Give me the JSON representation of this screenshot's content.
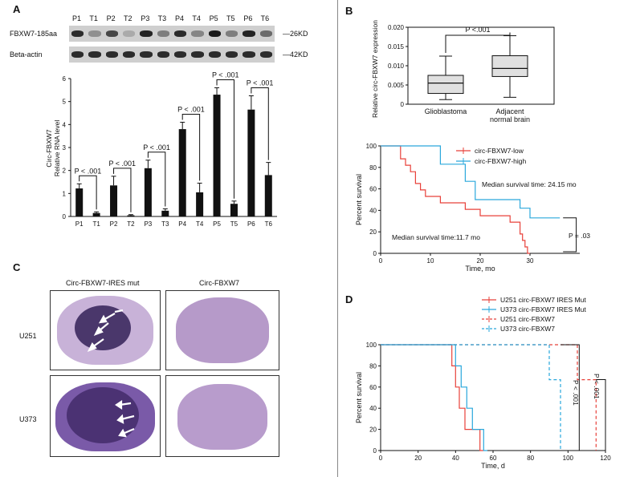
{
  "panels": {
    "a": "A",
    "b": "B",
    "c": "C",
    "d": "D"
  },
  "panel_a": {
    "lanes": [
      "P1",
      "T1",
      "P2",
      "T2",
      "P3",
      "T3",
      "P4",
      "T4",
      "P5",
      "T5",
      "P6",
      "T6"
    ],
    "blots": [
      {
        "name": "FBXW7-185aa",
        "size": "26KD",
        "intensity": [
          0.9,
          0.35,
          0.75,
          0.2,
          0.95,
          0.45,
          0.9,
          0.4,
          1.0,
          0.45,
          0.95,
          0.55
        ]
      },
      {
        "name": "Beta-actin",
        "size": "42KD",
        "intensity": [
          0.9,
          0.9,
          0.9,
          0.9,
          0.9,
          0.9,
          0.9,
          0.9,
          0.9,
          0.9,
          0.9,
          0.9
        ]
      }
    ]
  },
  "panel_c": {
    "col_labels": [
      "Circ-FBXW7-IRES mut",
      "Circ-FBXW7"
    ],
    "row_labels": [
      "U251",
      "U373"
    ]
  },
  "colors": {
    "red": "#e8413a",
    "blue": "#2aa8dc",
    "box_fill": "#e0e0e0"
  },
  "chart_data": [
    {
      "type": "bar",
      "ylabel": "Circ-FBXW7\nRelative RNA level",
      "ylim": [
        0,
        6
      ],
      "yticks": [
        0,
        1,
        2,
        3,
        4,
        5,
        6
      ],
      "categories": [
        "P1",
        "T1",
        "P2",
        "T2",
        "P3",
        "T3",
        "P4",
        "T4",
        "P5",
        "T5",
        "P6",
        "T6"
      ],
      "values": [
        1.22,
        0.15,
        1.35,
        0.05,
        2.1,
        0.25,
        3.8,
        1.05,
        5.3,
        0.55,
        4.65,
        1.8
      ],
      "errors": [
        0.2,
        0.05,
        0.4,
        0.03,
        0.35,
        0.08,
        0.3,
        0.4,
        0.3,
        0.12,
        0.6,
        0.55
      ],
      "annotations": [
        "P < .001",
        "P < .001",
        "P < .001",
        "P < .001",
        "P < .001",
        "P < .001"
      ]
    },
    {
      "type": "box",
      "ylabel": "Relative circ-FBXW7 expression",
      "ylim": [
        0,
        0.02
      ],
      "yticks": [
        "0",
        "0.005",
        "0.010",
        "0.015",
        "0.020"
      ],
      "categories": [
        "Glioblastoma",
        "Adjacent\nnormal brain"
      ],
      "boxes": [
        {
          "min": 0.0012,
          "q1": 0.0028,
          "median": 0.0055,
          "q3": 0.0075,
          "max": 0.0125
        },
        {
          "min": 0.0018,
          "q1": 0.0072,
          "median": 0.0093,
          "q3": 0.0126,
          "max": 0.0178
        }
      ],
      "annotation": "P <.001"
    },
    {
      "type": "line",
      "xlabel": "Time, mo",
      "ylabel": "Percent survival",
      "xlim": [
        0,
        40
      ],
      "ylim": [
        0,
        100
      ],
      "xticks": [
        0,
        10,
        20,
        30
      ],
      "yticks": [
        0,
        20,
        40,
        60,
        80,
        100
      ],
      "series": [
        {
          "name": "circ-FBXW7-low",
          "points": [
            [
              0,
              100
            ],
            [
              4,
              100
            ],
            [
              4,
              88
            ],
            [
              5,
              88
            ],
            [
              5,
              82
            ],
            [
              6,
              82
            ],
            [
              6,
              76
            ],
            [
              7,
              76
            ],
            [
              7,
              65
            ],
            [
              8,
              65
            ],
            [
              8,
              59
            ],
            [
              9,
              59
            ],
            [
              9,
              53
            ],
            [
              12,
              53
            ],
            [
              12,
              47
            ],
            [
              17,
              47
            ],
            [
              17,
              41
            ],
            [
              20,
              41
            ],
            [
              20,
              35
            ],
            [
              26,
              35
            ],
            [
              26,
              29
            ],
            [
              28,
              29
            ],
            [
              28,
              18
            ],
            [
              28.5,
              18
            ],
            [
              28.5,
              12
            ],
            [
              29,
              12
            ],
            [
              29,
              6
            ],
            [
              29.5,
              6
            ],
            [
              29.5,
              0
            ],
            [
              30,
              0
            ]
          ]
        },
        {
          "name": "circ-FBXW7-high",
          "points": [
            [
              0,
              100
            ],
            [
              12,
              100
            ],
            [
              12,
              83
            ],
            [
              17,
              83
            ],
            [
              17,
              67
            ],
            [
              19,
              67
            ],
            [
              19,
              50
            ],
            [
              28,
              50
            ],
            [
              28,
              42
            ],
            [
              30,
              42
            ],
            [
              30,
              33
            ],
            [
              36,
              33
            ]
          ]
        }
      ],
      "annotations": [
        "Median survival time: 24.15 mo",
        "Median survival time:11.7 mo",
        "P = .03"
      ]
    },
    {
      "type": "line",
      "xlabel": "Time, d",
      "ylabel": "Percent survival",
      "xlim": [
        0,
        120
      ],
      "ylim": [
        0,
        100
      ],
      "xticks": [
        0,
        20,
        40,
        60,
        80,
        100,
        120
      ],
      "yticks": [
        0,
        20,
        40,
        60,
        80,
        100
      ],
      "series": [
        {
          "name": "U251 circ-FBXW7 IRES Mut",
          "points": [
            [
              0,
              100
            ],
            [
              38,
              100
            ],
            [
              38,
              80
            ],
            [
              40,
              80
            ],
            [
              40,
              60
            ],
            [
              42,
              60
            ],
            [
              42,
              40
            ],
            [
              45,
              40
            ],
            [
              45,
              20
            ],
            [
              53,
              20
            ],
            [
              53,
              0
            ],
            [
              55,
              0
            ]
          ]
        },
        {
          "name": "U373 circ-FBXW7 IRES Mut",
          "points": [
            [
              0,
              100
            ],
            [
              40,
              100
            ],
            [
              40,
              80
            ],
            [
              43,
              80
            ],
            [
              43,
              60
            ],
            [
              46,
              60
            ],
            [
              46,
              40
            ],
            [
              49,
              40
            ],
            [
              49,
              20
            ],
            [
              55,
              20
            ],
            [
              55,
              0
            ],
            [
              57,
              0
            ]
          ]
        },
        {
          "name": "U251 circ-FBXW7",
          "points": [
            [
              0,
              100
            ],
            [
              105,
              100
            ],
            [
              105,
              67
            ],
            [
              115,
              67
            ],
            [
              115,
              0
            ]
          ]
        },
        {
          "name": "U373 circ-FBXW7",
          "points": [
            [
              0,
              100
            ],
            [
              90,
              100
            ],
            [
              90,
              67
            ],
            [
              96,
              67
            ],
            [
              96,
              0
            ]
          ]
        }
      ],
      "annotations": [
        "P < .001",
        "P < .001"
      ]
    }
  ]
}
